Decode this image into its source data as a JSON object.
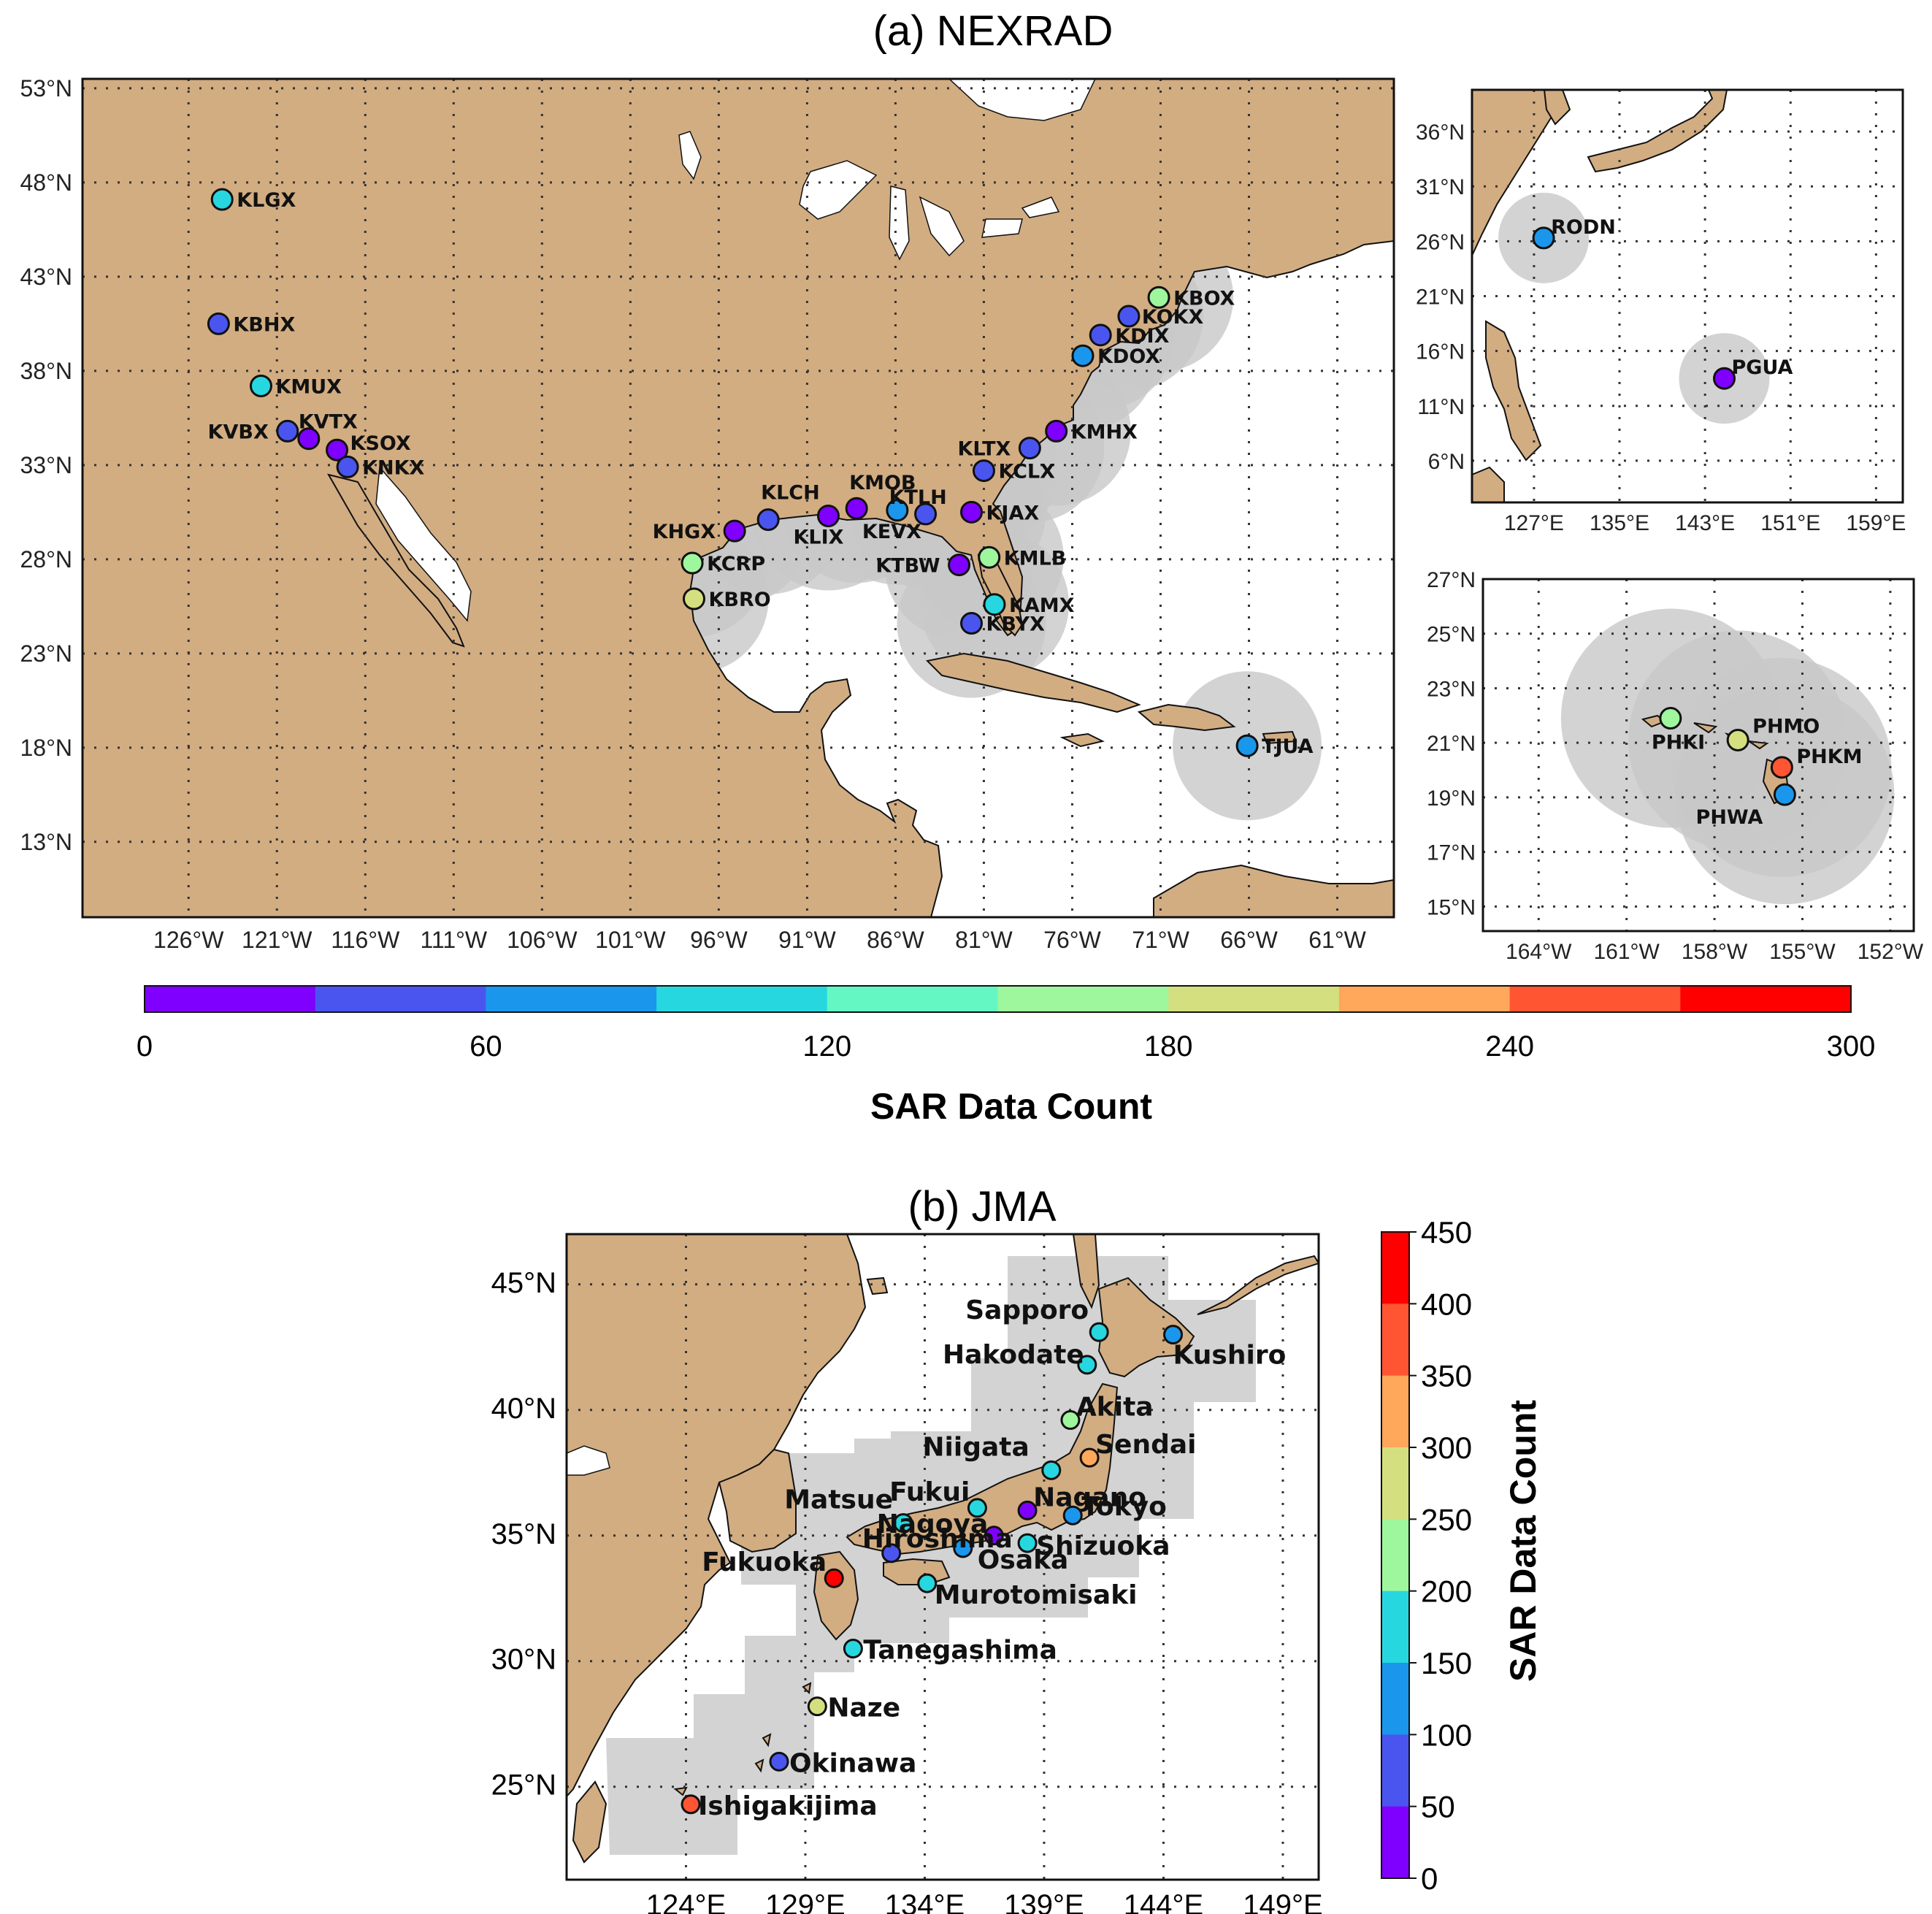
{
  "panel_a": {
    "title": "(a) NEXRAD",
    "lat_ticks": [
      "53°N",
      "48°N",
      "43°N",
      "38°N",
      "33°N",
      "28°N",
      "23°N",
      "18°N",
      "13°N"
    ],
    "lon_ticks": [
      "126°W",
      "121°W",
      "116°W",
      "111°W",
      "106°W",
      "101°W",
      "96°W",
      "91°W",
      "86°W",
      "81°W",
      "76°W",
      "71°W",
      "66°W",
      "61°W"
    ],
    "inset_west_pacific": {
      "lat_ticks": [
        "36°N",
        "31°N",
        "26°N",
        "21°N",
        "16°N",
        "11°N",
        "6°N"
      ],
      "lon_ticks": [
        "127°E",
        "135°E",
        "143°E",
        "151°E",
        "159°E"
      ]
    },
    "inset_hawaii": {
      "lat_ticks": [
        "27°N",
        "25°N",
        "23°N",
        "21°N",
        "19°N",
        "17°N",
        "15°N"
      ],
      "lon_ticks": [
        "164°W",
        "161°W",
        "158°W",
        "155°W",
        "152°W"
      ]
    },
    "colorbar": {
      "label": "SAR Data Count",
      "ticks": [
        "0",
        "60",
        "120",
        "180",
        "240",
        "300"
      ],
      "colors": [
        "#7f00ff",
        "#4a55f0",
        "#1a97ec",
        "#27d7df",
        "#64f7c4",
        "#9ef79c",
        "#d4e07f",
        "#ffa75a",
        "#ff5533",
        "#ff0000"
      ]
    }
  },
  "panel_b": {
    "title": "(b) JMA",
    "lat_ticks": [
      "45°N",
      "40°N",
      "35°N",
      "30°N",
      "25°N"
    ],
    "lon_ticks": [
      "124°E",
      "129°E",
      "134°E",
      "139°E",
      "144°E",
      "149°E"
    ],
    "colorbar": {
      "label": "SAR Data Count",
      "ticks": [
        "450",
        "400",
        "350",
        "300",
        "250",
        "200",
        "150",
        "100",
        "50",
        "0"
      ],
      "colors": [
        "#ff0000",
        "#ff5533",
        "#ffa75a",
        "#d4e07f",
        "#9ef79c",
        "#27d7df",
        "#1a97ec",
        "#4a55f0",
        "#7f00ff"
      ]
    }
  },
  "chart_data": [
    {
      "type": "scatter",
      "title": "(a) NEXRAD",
      "colorbar_label": "SAR Data Count",
      "color_range": [
        0,
        300
      ],
      "stations": [
        {
          "name": "KLGX",
          "lat": 47.1,
          "lon": -124.1,
          "count": 115
        },
        {
          "name": "KBHX",
          "lat": 40.5,
          "lon": -124.3,
          "count": 40
        },
        {
          "name": "KMUX",
          "lat": 37.2,
          "lon": -121.9,
          "count": 110
        },
        {
          "name": "KVBX",
          "lat": 34.8,
          "lon": -120.4,
          "count": 40
        },
        {
          "name": "KVTX",
          "lat": 34.4,
          "lon": -119.2,
          "count": 20
        },
        {
          "name": "KSOX",
          "lat": 33.8,
          "lon": -117.6,
          "count": 15
        },
        {
          "name": "KNKX",
          "lat": 32.9,
          "lon": -117.0,
          "count": 40
        },
        {
          "name": "KHGX",
          "lat": 29.5,
          "lon": -95.1,
          "count": 15
        },
        {
          "name": "KLCH",
          "lat": 30.1,
          "lon": -93.2,
          "count": 40
        },
        {
          "name": "KLIX",
          "lat": 30.3,
          "lon": -89.8,
          "count": 10
        },
        {
          "name": "KMOB",
          "lat": 30.7,
          "lon": -88.2,
          "count": 15
        },
        {
          "name": "KEVX",
          "lat": 30.6,
          "lon": -85.9,
          "count": 70
        },
        {
          "name": "KTLH",
          "lat": 30.4,
          "lon": -84.3,
          "count": 50
        },
        {
          "name": "KJAX",
          "lat": 30.5,
          "lon": -81.7,
          "count": 15
        },
        {
          "name": "KTBW",
          "lat": 27.7,
          "lon": -82.4,
          "count": 15
        },
        {
          "name": "KMLB",
          "lat": 28.1,
          "lon": -80.7,
          "count": 150
        },
        {
          "name": "KAMX",
          "lat": 25.6,
          "lon": -80.4,
          "count": 115
        },
        {
          "name": "KBYX",
          "lat": 24.6,
          "lon": -81.7,
          "count": 50
        },
        {
          "name": "KCRP",
          "lat": 27.8,
          "lon": -97.5,
          "count": 150
        },
        {
          "name": "KBRO",
          "lat": 25.9,
          "lon": -97.4,
          "count": 190
        },
        {
          "name": "KLTX",
          "lat": 33.9,
          "lon": -78.4,
          "count": 50
        },
        {
          "name": "KCLX",
          "lat": 32.7,
          "lon": -81.0,
          "count": 45
        },
        {
          "name": "KMHX",
          "lat": 34.8,
          "lon": -76.9,
          "count": 20
        },
        {
          "name": "KDOX",
          "lat": 38.8,
          "lon": -75.4,
          "count": 80
        },
        {
          "name": "KDIX",
          "lat": 39.9,
          "lon": -74.4,
          "count": 45
        },
        {
          "name": "KOKX",
          "lat": 40.9,
          "lon": -72.8,
          "count": 45
        },
        {
          "name": "KBOX",
          "lat": 41.9,
          "lon": -71.1,
          "count": 150
        },
        {
          "name": "TJUA",
          "lat": 18.1,
          "lon": -66.1,
          "count": 80
        },
        {
          "name": "RODN",
          "lat": 26.3,
          "lon": 127.9,
          "count": 80
        },
        {
          "name": "PGUA",
          "lat": 13.5,
          "lon": 144.8,
          "count": 15
        },
        {
          "name": "PHKI",
          "lat": 21.9,
          "lon": -159.5,
          "count": 160
        },
        {
          "name": "PHMO",
          "lat": 21.1,
          "lon": -157.2,
          "count": 195
        },
        {
          "name": "PHKM",
          "lat": 20.1,
          "lon": -155.7,
          "count": 250
        },
        {
          "name": "PHWA",
          "lat": 19.1,
          "lon": -155.6,
          "count": 80
        }
      ]
    },
    {
      "type": "scatter",
      "title": "(b) JMA",
      "colorbar_label": "SAR Data Count",
      "color_range": [
        0,
        450
      ],
      "stations": [
        {
          "name": "Sapporo",
          "lat": 43.1,
          "lon": 141.3,
          "count": 170
        },
        {
          "name": "Kushiro",
          "lat": 43.0,
          "lon": 144.4,
          "count": 120
        },
        {
          "name": "Hakodate",
          "lat": 41.8,
          "lon": 140.8,
          "count": 160
        },
        {
          "name": "Akita",
          "lat": 39.6,
          "lon": 140.1,
          "count": 210
        },
        {
          "name": "Sendai",
          "lat": 38.1,
          "lon": 140.9,
          "count": 320
        },
        {
          "name": "Niigata",
          "lat": 37.6,
          "lon": 139.3,
          "count": 170
        },
        {
          "name": "Fukui",
          "lat": 36.1,
          "lon": 136.2,
          "count": 175
        },
        {
          "name": "Nagano",
          "lat": 36.0,
          "lon": 138.3,
          "count": 40
        },
        {
          "name": "Tokyo",
          "lat": 35.8,
          "lon": 140.2,
          "count": 110
        },
        {
          "name": "Matsue",
          "lat": 35.5,
          "lon": 133.1,
          "count": 160
        },
        {
          "name": "Nagoya",
          "lat": 35.0,
          "lon": 136.9,
          "count": 20
        },
        {
          "name": "Shizuoka",
          "lat": 34.7,
          "lon": 138.3,
          "count": 165
        },
        {
          "name": "Osaka",
          "lat": 34.5,
          "lon": 135.6,
          "count": 120
        },
        {
          "name": "Hiroshima",
          "lat": 34.3,
          "lon": 132.6,
          "count": 60
        },
        {
          "name": "Fukuoka",
          "lat": 33.3,
          "lon": 130.2,
          "count": 440
        },
        {
          "name": "Murotomisaki",
          "lat": 33.1,
          "lon": 134.1,
          "count": 160
        },
        {
          "name": "Tanegashima",
          "lat": 30.5,
          "lon": 131.0,
          "count": 160
        },
        {
          "name": "Naze",
          "lat": 28.2,
          "lon": 129.5,
          "count": 260
        },
        {
          "name": "Okinawa",
          "lat": 26.0,
          "lon": 127.9,
          "count": 60
        },
        {
          "name": "Ishigakijima",
          "lat": 24.3,
          "lon": 124.2,
          "count": 380
        }
      ]
    }
  ]
}
